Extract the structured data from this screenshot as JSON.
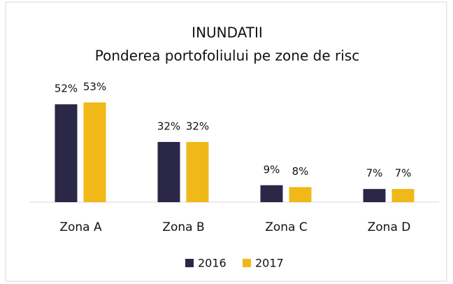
{
  "chart_data": {
    "type": "bar",
    "title": "INUNDATII",
    "subtitle": "Ponderea portofoliului pe zone de risc",
    "categories": [
      "Zona A",
      "Zona B",
      "Zona C",
      "Zona D"
    ],
    "series": [
      {
        "name": "2016",
        "color": "#2b2747",
        "values": [
          52,
          32,
          9,
          7
        ],
        "value_labels": [
          "52%",
          "32%",
          "9%",
          "7%"
        ]
      },
      {
        "name": "2017",
        "color": "#f0b917",
        "values": [
          53,
          32,
          8,
          7
        ],
        "value_labels": [
          "53%",
          "32%",
          "8%",
          "7%"
        ]
      }
    ],
    "legend": "bottom"
  }
}
